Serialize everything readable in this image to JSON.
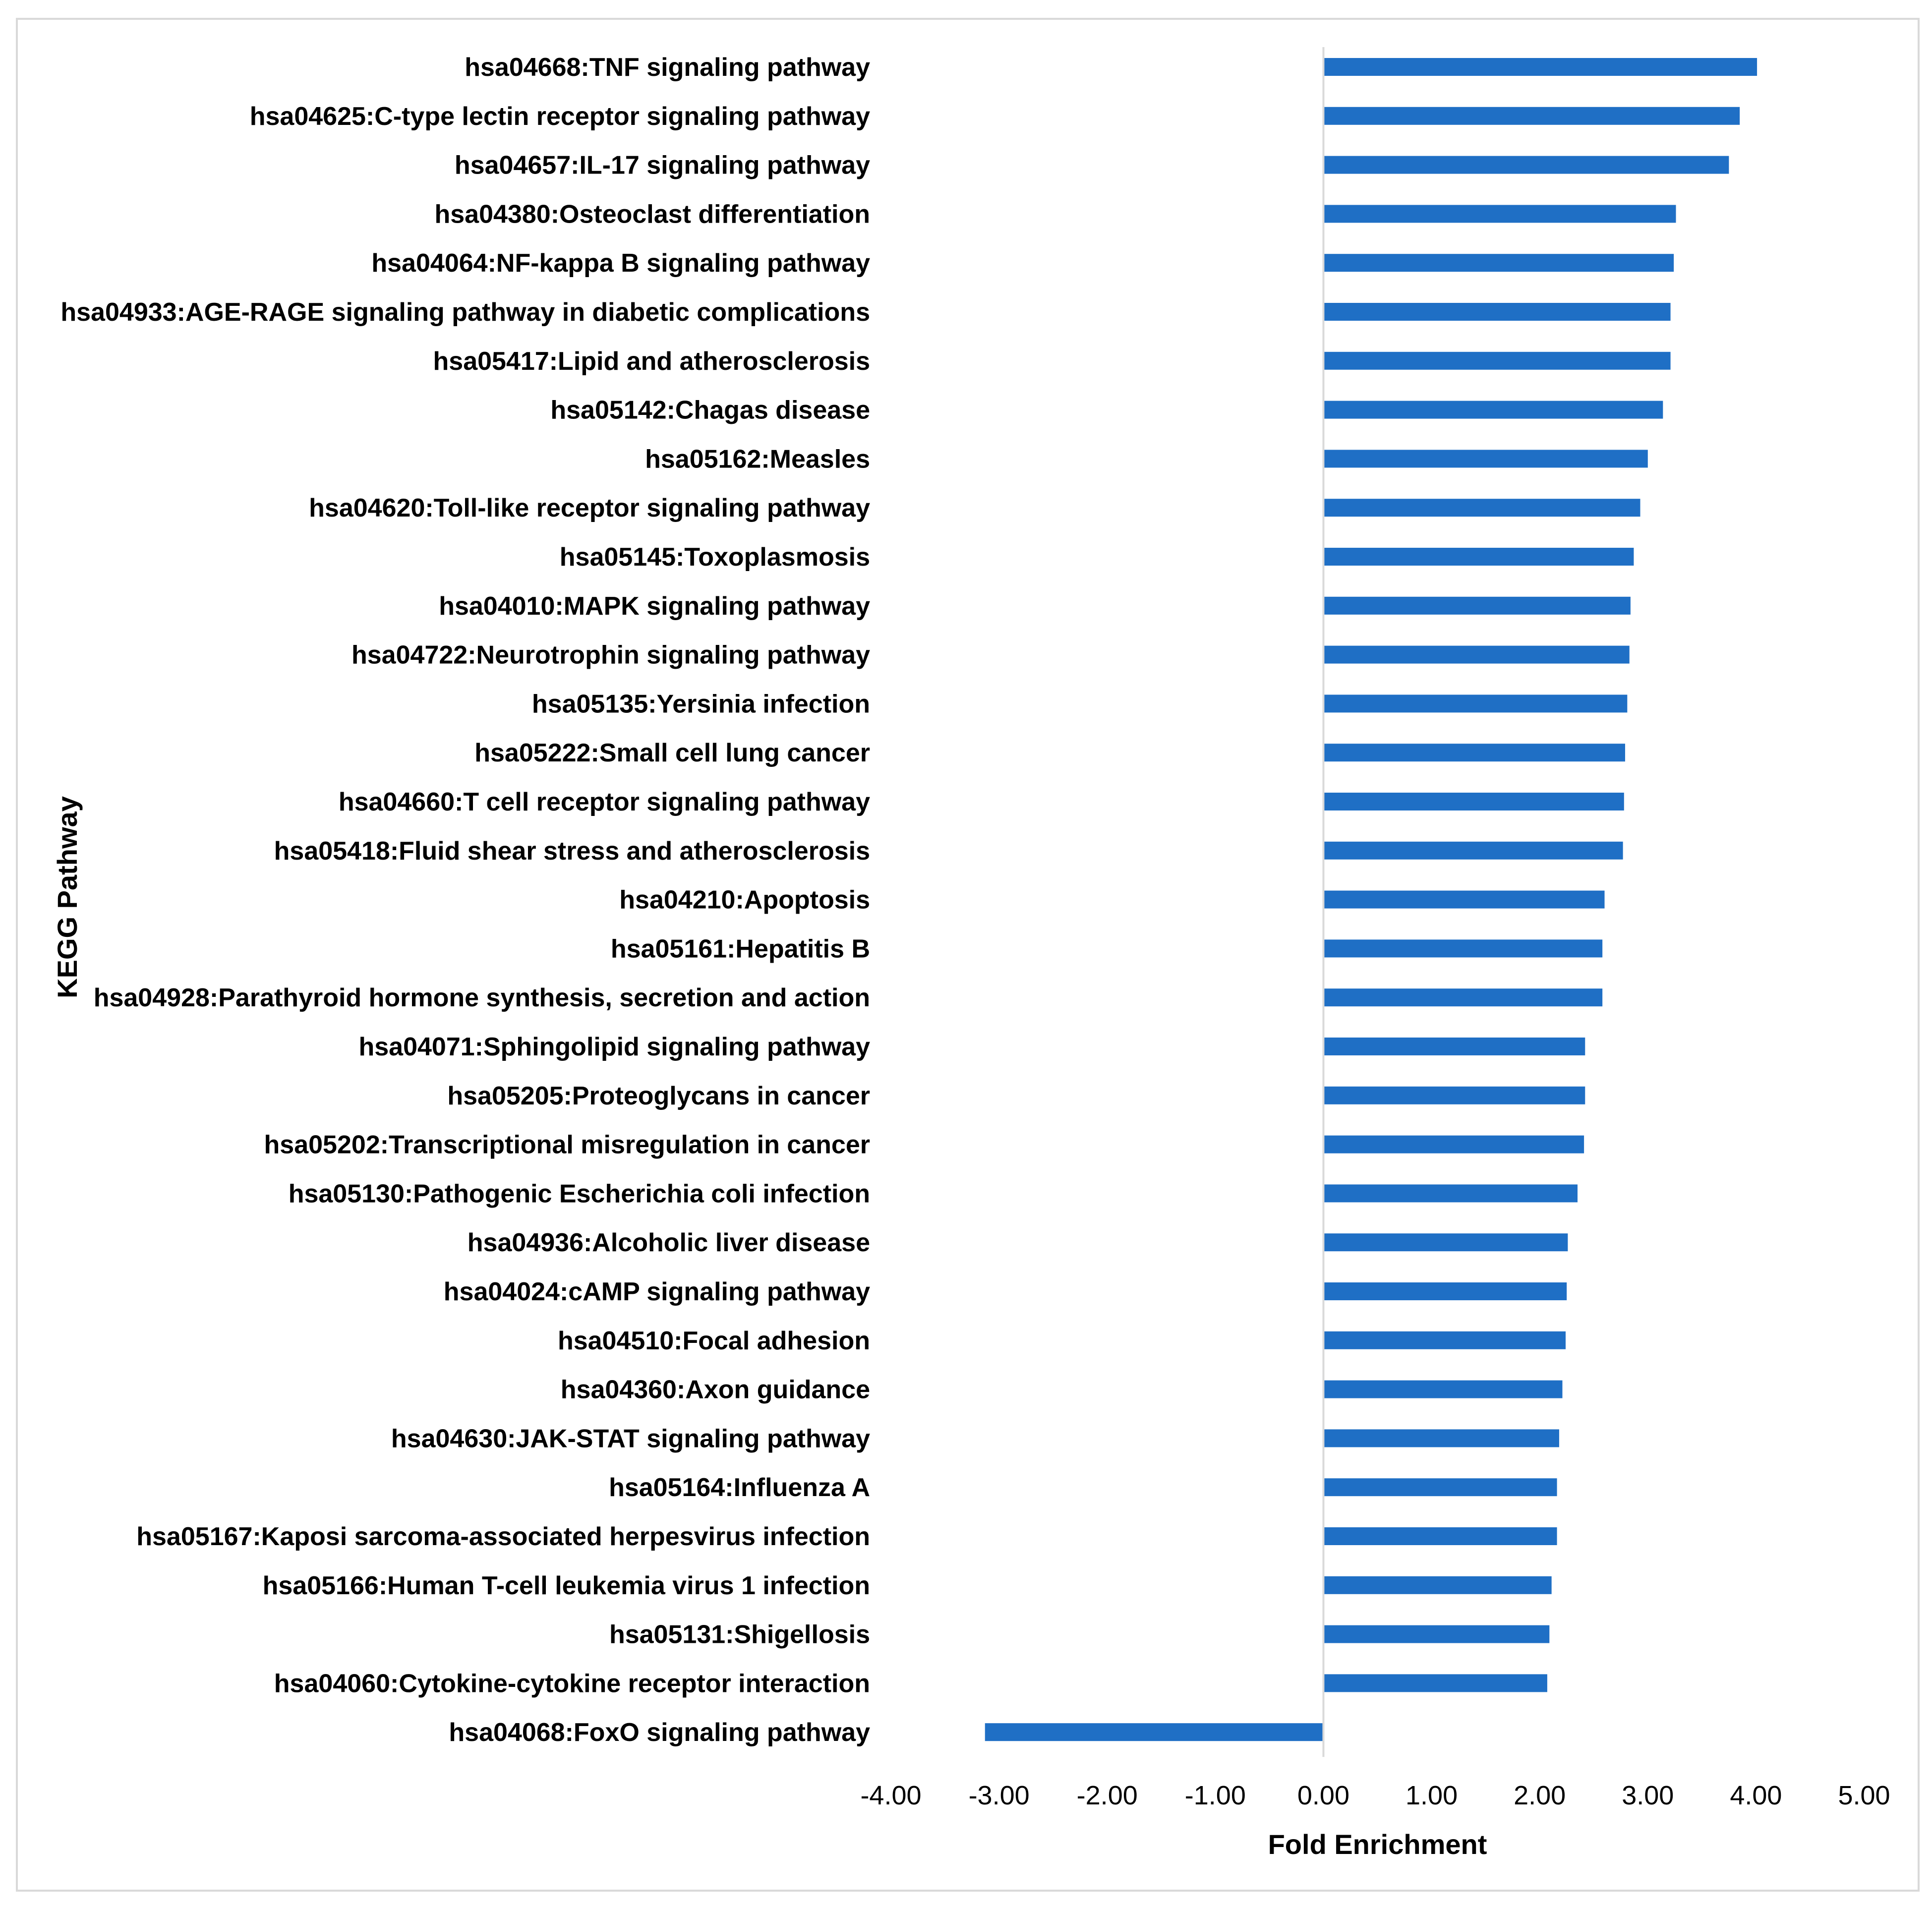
{
  "chart_data": {
    "type": "bar",
    "orientation": "horizontal",
    "title": "",
    "xlabel": "Fold Enrichment",
    "ylabel": "KEGG Pathway",
    "xlim": [
      -4.0,
      5.0
    ],
    "x_ticks": [
      "-4.00",
      "-3.00",
      "-2.00",
      "-1.00",
      "0.00",
      "1.00",
      "2.00",
      "3.00",
      "4.00",
      "5.00"
    ],
    "grid": false,
    "legend": "none",
    "bar_color": "#1f6fc5",
    "axis_color": "#d9d9d9",
    "categories": [
      "hsa04668:TNF signaling pathway",
      "hsa04625:C-type lectin receptor signaling pathway",
      "hsa04657:IL-17 signaling pathway",
      "hsa04380:Osteoclast differentiation",
      "hsa04064:NF-kappa B signaling pathway",
      "hsa04933:AGE-RAGE signaling pathway in diabetic complications",
      "hsa05417:Lipid and atherosclerosis",
      "hsa05142:Chagas disease",
      "hsa05162:Measles",
      "hsa04620:Toll-like receptor signaling pathway",
      "hsa05145:Toxoplasmosis",
      "hsa04010:MAPK signaling pathway",
      "hsa04722:Neurotrophin signaling pathway",
      "hsa05135:Yersinia infection",
      "hsa05222:Small cell lung cancer",
      "hsa04660:T cell receptor signaling pathway",
      "hsa05418:Fluid shear stress and atherosclerosis",
      "hsa04210:Apoptosis",
      "hsa05161:Hepatitis B",
      "hsa04928:Parathyroid hormone synthesis, secretion and action",
      "hsa04071:Sphingolipid signaling pathway",
      "hsa05205:Proteoglycans in cancer",
      "hsa05202:Transcriptional misregulation in cancer",
      "hsa05130:Pathogenic Escherichia coli infection",
      "hsa04936:Alcoholic liver disease",
      "hsa04024:cAMP signaling pathway",
      "hsa04510:Focal adhesion",
      "hsa04360:Axon guidance",
      "hsa04630:JAK-STAT signaling pathway",
      "hsa05164:Influenza A",
      "hsa05167:Kaposi sarcoma-associated herpesvirus infection",
      "hsa05166:Human T-cell leukemia virus 1 infection",
      "hsa05131:Shigellosis",
      "hsa04060:Cytokine-cytokine receptor interaction",
      "hsa04068:FoxO signaling pathway"
    ],
    "values": [
      4.01,
      3.85,
      3.75,
      3.26,
      3.24,
      3.21,
      3.21,
      3.14,
      3.0,
      2.93,
      2.87,
      2.84,
      2.83,
      2.81,
      2.79,
      2.78,
      2.77,
      2.6,
      2.58,
      2.58,
      2.42,
      2.42,
      2.41,
      2.35,
      2.26,
      2.25,
      2.24,
      2.21,
      2.18,
      2.16,
      2.16,
      2.11,
      2.09,
      2.07,
      -3.13
    ]
  }
}
